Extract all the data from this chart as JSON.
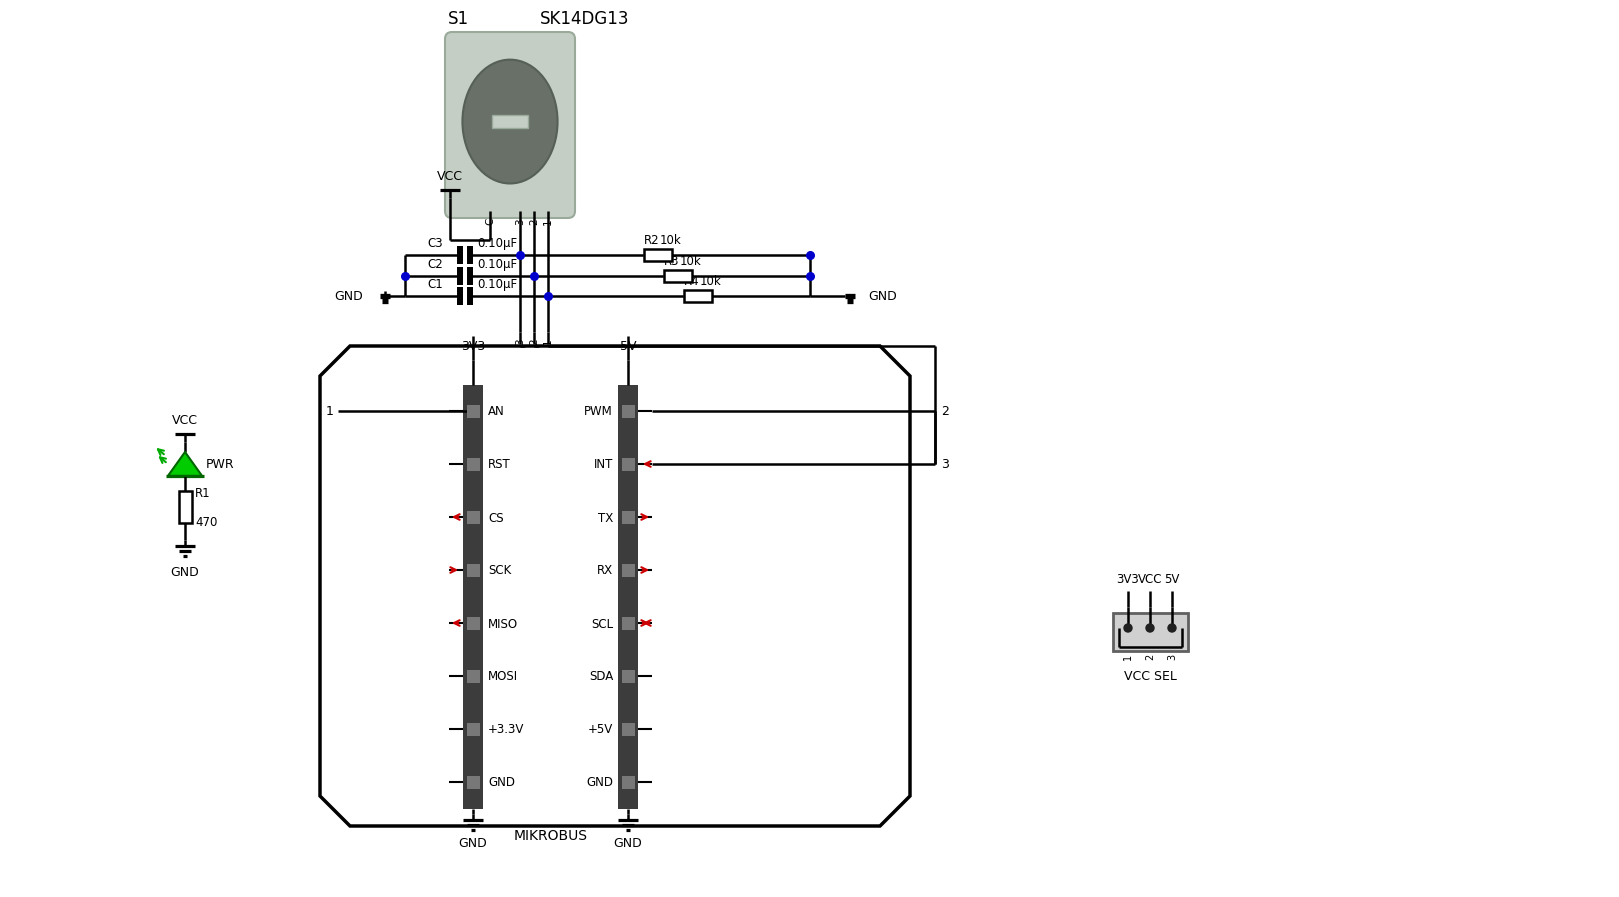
{
  "bg": "#ffffff",
  "bk": "#000000",
  "bl": "#0000cc",
  "rd": "#cc0000",
  "gr": "#00bb00",
  "sw_body": "#c5cec5",
  "sw_edge": "#9aaa9a",
  "sw_inner": "#687068",
  "sw_inner_edge": "#566056",
  "sw_btn": "#c5cec5",
  "conn_dark": "#3c3c3c",
  "conn_slot": "#787878",
  "mikrobus_left": [
    "AN",
    "RST",
    "CS",
    "SCK",
    "MISO",
    "MOSI",
    "+3.3V",
    "GND"
  ],
  "mikrobus_right": [
    "PWM",
    "INT",
    "TX",
    "RX",
    "SCL",
    "SDA",
    "+5V",
    "GND"
  ],
  "left_arrows": [
    null,
    null,
    "left",
    "right",
    "left",
    null,
    null,
    null
  ],
  "right_arrows": [
    null,
    "left",
    "right",
    "right",
    "both",
    null,
    null,
    null
  ],
  "s1_lbl": "S1",
  "s1_part": "SK14DG13",
  "vcc": "VCC",
  "gnd": "GND",
  "3v3": "3V3",
  "5v": "5V",
  "c_labels": [
    "C3",
    "C2",
    "C1"
  ],
  "c_vals": [
    "0.10μF",
    "0.10μF",
    "0.10μF"
  ],
  "r_labels": [
    "R2",
    "R3",
    "R4"
  ],
  "r_vals": [
    "10k",
    "10k",
    "10k"
  ],
  "r1": "R1",
  "r1v": "470",
  "pwr": "PWR",
  "mb": "MIKROBUS",
  "vccsel": "VCC SEL"
}
